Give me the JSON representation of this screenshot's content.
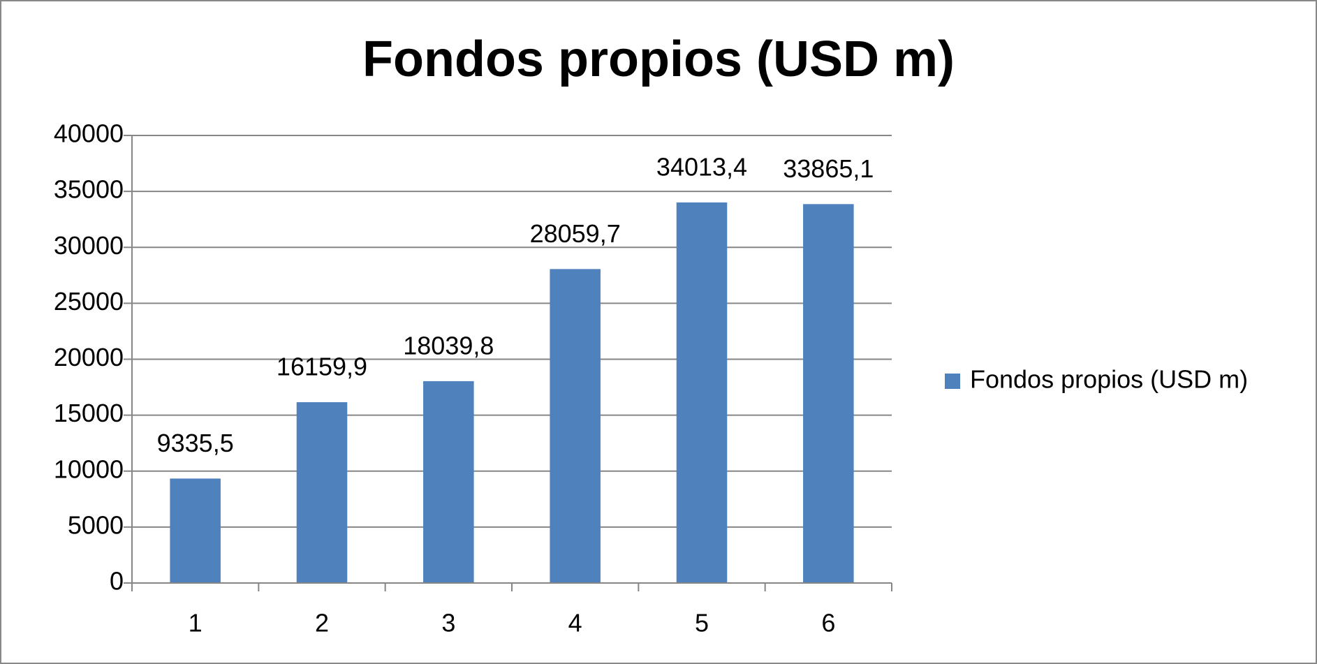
{
  "chart_data": {
    "type": "bar",
    "title": "Fondos propios (USD m)",
    "categories": [
      "1",
      "2",
      "3",
      "4",
      "5",
      "6"
    ],
    "series": [
      {
        "name": "Fondos propios (USD m)",
        "color": "#4f81bd",
        "values": [
          9335.5,
          16159.9,
          18039.8,
          28059.7,
          34013.4,
          33865.1
        ],
        "value_labels": [
          "9335,5",
          "16159,9",
          "18039,8",
          "28059,7",
          "34013,4",
          "33865,1"
        ]
      }
    ],
    "ylim": [
      0,
      40000
    ],
    "yticks": [
      0,
      5000,
      10000,
      15000,
      20000,
      25000,
      30000,
      35000,
      40000
    ],
    "grid": true,
    "legend": "right"
  }
}
